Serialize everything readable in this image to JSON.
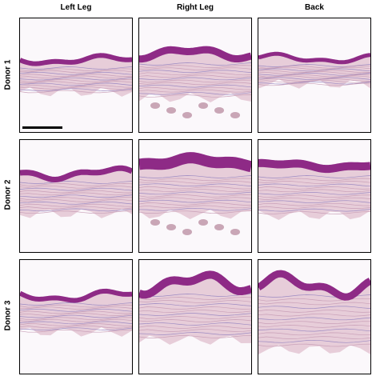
{
  "columns": [
    "Left Leg",
    "Right Leg",
    "Back"
  ],
  "rows": [
    "Donor 1",
    "Donor 2",
    "Donor 3"
  ],
  "panels": [
    {
      "name": "donor-1-left-leg",
      "image": "H&E-stained skin section, thin wavy epidermis, sparse dermis"
    },
    {
      "name": "donor-1-right-leg",
      "image": "H&E-stained skin section, epidermis with dense lower fragments"
    },
    {
      "name": "donor-1-back",
      "image": "H&E-stained skin section, thin epidermis, thin dermis"
    },
    {
      "name": "donor-2-left-leg",
      "image": "H&E-stained skin section, wavy epidermis, pale dermis"
    },
    {
      "name": "donor-2-right-leg",
      "image": "H&E-stained skin section, thick epidermis, dense dermis with fragments"
    },
    {
      "name": "donor-2-back",
      "image": "H&E-stained skin section, thick epidermis, fibrous dermis"
    },
    {
      "name": "donor-3-left-leg",
      "image": "H&E-stained skin section, wavy epidermis, pale dermis"
    },
    {
      "name": "donor-3-right-leg",
      "image": "H&E-stained skin section, curved epidermis, dense dermis"
    },
    {
      "name": "donor-3-back",
      "image": "H&E-stained skin section, domed epidermis, layered dermis"
    }
  ],
  "colors": {
    "epidermis": "#8e2a86",
    "dermis": "#e3c6d2",
    "background": "#fbf8fb"
  }
}
